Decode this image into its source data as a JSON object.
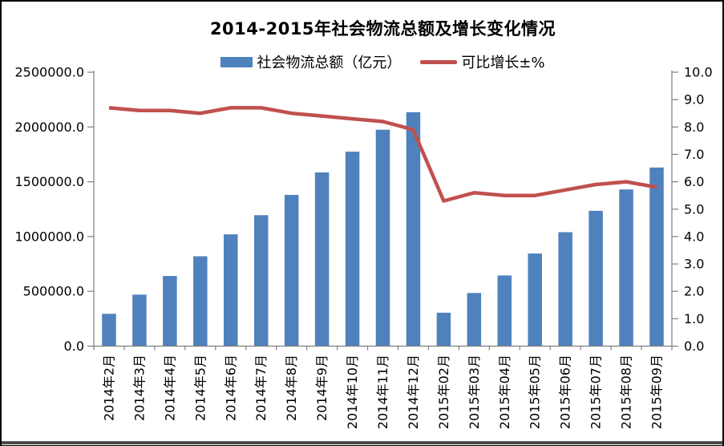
{
  "chart_data": {
    "type": "combo-bar-line",
    "title": "2014-2015年社会物流总额及增长变化情况",
    "categories": [
      "2014年2月",
      "2014年3月",
      "2014年4月",
      "2014年5月",
      "2014年6月",
      "2014年7月",
      "2014年8月",
      "2014年9月",
      "2014年10月",
      "2014年11月",
      "2014年12月",
      "2015年02月",
      "2015年03月",
      "2015年04月",
      "2015年05月",
      "2015年06月",
      "2015年07月",
      "2015年08月",
      "2015年09月"
    ],
    "series": [
      {
        "name": "社会物流总额（亿元）",
        "type": "bar",
        "axis": "left",
        "color": "#4F81BD",
        "values": [
          295000,
          470000,
          640000,
          820000,
          1020000,
          1195000,
          1380000,
          1585000,
          1775000,
          1975000,
          2135000,
          305000,
          485000,
          645000,
          845000,
          1040000,
          1235000,
          1430000,
          1630000
        ]
      },
      {
        "name": "可比增长±%",
        "type": "line",
        "axis": "right",
        "color": "#C0504D",
        "values": [
          8.7,
          8.6,
          8.6,
          8.5,
          8.7,
          8.7,
          8.5,
          8.4,
          8.3,
          8.2,
          7.9,
          5.3,
          5.6,
          5.5,
          5.5,
          5.7,
          5.9,
          6.0,
          5.8
        ]
      }
    ],
    "left_axis": {
      "min": 0,
      "max": 2500000,
      "step": 500000,
      "tick_labels": [
        "2500000.0",
        "2000000.0",
        "1500000.0",
        "1000000.0",
        "500000.0",
        "0.0"
      ]
    },
    "right_axis": {
      "min": 0,
      "max": 10,
      "step": 1,
      "tick_labels": [
        "10.0",
        "9.0",
        "8.0",
        "7.0",
        "6.0",
        "5.0",
        "4.0",
        "3.0",
        "2.0",
        "1.0",
        "0.0"
      ]
    },
    "legend_position": "top",
    "grid": false,
    "plot_background": "#FFFFFF",
    "colors": {
      "axis_line": "#808080",
      "text": "#000000",
      "bottom_edge": "#4A4A4A",
      "background": "#FFFFFF"
    }
  }
}
